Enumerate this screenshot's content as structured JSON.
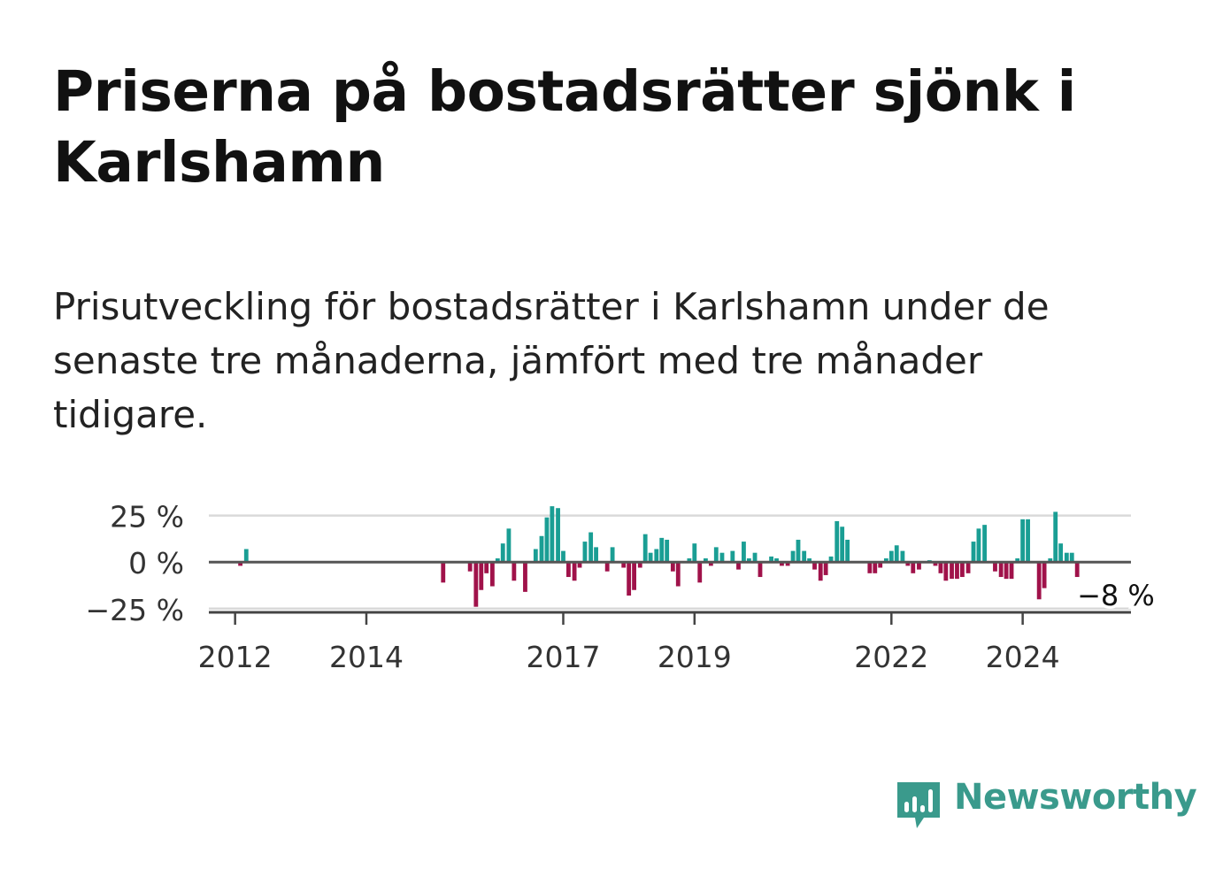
{
  "title": "Priserna på bostadsrätter sjönk i Karlshamn",
  "subtitle": "Prisutveckling för bostadsrätter i Karlshamn under de senaste tre månaderna, jämfört med tre månader tidigare.",
  "brand": "Newsworthy",
  "colors": {
    "positive": "#1a9e94",
    "negative": "#a0124a",
    "grid": "#d9d9d9",
    "zero": "#555555",
    "brand": "#3a9a8c"
  },
  "chart_data": {
    "type": "bar",
    "ylim": [
      -27,
      31
    ],
    "yticks": [
      25,
      0,
      -25
    ],
    "ytick_labels": [
      "25 %",
      "0 %",
      "−25 %"
    ],
    "xticks": [
      2012,
      2014,
      2017,
      2019,
      2022,
      2024
    ],
    "xtick_labels": [
      "2012",
      "2014",
      "2017",
      "2019",
      "2022",
      "2024"
    ],
    "xlim": [
      2011.6,
      2025.65
    ],
    "annotation": {
      "text": "−8 %",
      "x": 2025.42,
      "y": -8
    },
    "series": [
      {
        "values": [
          {
            "x": 2012.08,
            "y": -2
          },
          {
            "x": 2012.17,
            "y": 7
          },
          {
            "x": 2015.17,
            "y": -11
          },
          {
            "x": 2015.58,
            "y": -5
          },
          {
            "x": 2015.67,
            "y": -24
          },
          {
            "x": 2015.75,
            "y": -15
          },
          {
            "x": 2015.83,
            "y": -6
          },
          {
            "x": 2015.92,
            "y": -13
          },
          {
            "x": 2016.0,
            "y": 2
          },
          {
            "x": 2016.08,
            "y": 10
          },
          {
            "x": 2016.17,
            "y": 18
          },
          {
            "x": 2016.25,
            "y": -10
          },
          {
            "x": 2016.42,
            "y": -16
          },
          {
            "x": 2016.58,
            "y": 7
          },
          {
            "x": 2016.67,
            "y": 14
          },
          {
            "x": 2016.75,
            "y": 24
          },
          {
            "x": 2016.83,
            "y": 30
          },
          {
            "x": 2016.92,
            "y": 29
          },
          {
            "x": 2017.0,
            "y": 6
          },
          {
            "x": 2017.08,
            "y": -8
          },
          {
            "x": 2017.17,
            "y": -10
          },
          {
            "x": 2017.25,
            "y": -3
          },
          {
            "x": 2017.33,
            "y": 11
          },
          {
            "x": 2017.42,
            "y": 16
          },
          {
            "x": 2017.5,
            "y": 8
          },
          {
            "x": 2017.67,
            "y": -5
          },
          {
            "x": 2017.75,
            "y": 8
          },
          {
            "x": 2017.92,
            "y": -3
          },
          {
            "x": 2018.0,
            "y": -18
          },
          {
            "x": 2018.08,
            "y": -15
          },
          {
            "x": 2018.17,
            "y": -3
          },
          {
            "x": 2018.25,
            "y": 15
          },
          {
            "x": 2018.33,
            "y": 5
          },
          {
            "x": 2018.42,
            "y": 7
          },
          {
            "x": 2018.5,
            "y": 13
          },
          {
            "x": 2018.58,
            "y": 12
          },
          {
            "x": 2018.67,
            "y": -5
          },
          {
            "x": 2018.75,
            "y": -13
          },
          {
            "x": 2018.92,
            "y": 2
          },
          {
            "x": 2019.0,
            "y": 10
          },
          {
            "x": 2019.08,
            "y": -11
          },
          {
            "x": 2019.17,
            "y": 2
          },
          {
            "x": 2019.25,
            "y": -2
          },
          {
            "x": 2019.33,
            "y": 8
          },
          {
            "x": 2019.42,
            "y": 5
          },
          {
            "x": 2019.58,
            "y": 6
          },
          {
            "x": 2019.67,
            "y": -4
          },
          {
            "x": 2019.75,
            "y": 11
          },
          {
            "x": 2019.83,
            "y": 2
          },
          {
            "x": 2019.92,
            "y": 5
          },
          {
            "x": 2020.0,
            "y": -8
          },
          {
            "x": 2020.17,
            "y": 3
          },
          {
            "x": 2020.25,
            "y": 2
          },
          {
            "x": 2020.33,
            "y": -2
          },
          {
            "x": 2020.42,
            "y": -2
          },
          {
            "x": 2020.5,
            "y": 6
          },
          {
            "x": 2020.58,
            "y": 12
          },
          {
            "x": 2020.67,
            "y": 6
          },
          {
            "x": 2020.75,
            "y": 2
          },
          {
            "x": 2020.83,
            "y": -4
          },
          {
            "x": 2020.92,
            "y": -10
          },
          {
            "x": 2021.0,
            "y": -7
          },
          {
            "x": 2021.08,
            "y": 3
          },
          {
            "x": 2021.17,
            "y": 22
          },
          {
            "x": 2021.25,
            "y": 19
          },
          {
            "x": 2021.33,
            "y": 12
          },
          {
            "x": 2021.67,
            "y": -6
          },
          {
            "x": 2021.75,
            "y": -6
          },
          {
            "x": 2021.83,
            "y": -3
          },
          {
            "x": 2021.92,
            "y": 2
          },
          {
            "x": 2022.0,
            "y": 6
          },
          {
            "x": 2022.08,
            "y": 9
          },
          {
            "x": 2022.17,
            "y": 6
          },
          {
            "x": 2022.25,
            "y": -2
          },
          {
            "x": 2022.33,
            "y": -6
          },
          {
            "x": 2022.42,
            "y": -4
          },
          {
            "x": 2022.58,
            "y": 1
          },
          {
            "x": 2022.67,
            "y": -2
          },
          {
            "x": 2022.75,
            "y": -6
          },
          {
            "x": 2022.83,
            "y": -10
          },
          {
            "x": 2022.92,
            "y": -9
          },
          {
            "x": 2023.0,
            "y": -9
          },
          {
            "x": 2023.08,
            "y": -8
          },
          {
            "x": 2023.17,
            "y": -6
          },
          {
            "x": 2023.25,
            "y": 11
          },
          {
            "x": 2023.33,
            "y": 18
          },
          {
            "x": 2023.42,
            "y": 20
          },
          {
            "x": 2023.58,
            "y": -5
          },
          {
            "x": 2023.67,
            "y": -8
          },
          {
            "x": 2023.75,
            "y": -9
          },
          {
            "x": 2023.83,
            "y": -9
          },
          {
            "x": 2023.92,
            "y": 2
          },
          {
            "x": 2024.0,
            "y": 23
          },
          {
            "x": 2024.08,
            "y": 23
          },
          {
            "x": 2024.17,
            "y": 0.5
          },
          {
            "x": 2024.25,
            "y": -20
          },
          {
            "x": 2024.33,
            "y": -14
          },
          {
            "x": 2024.42,
            "y": 2
          },
          {
            "x": 2024.5,
            "y": 27
          },
          {
            "x": 2024.58,
            "y": 10
          },
          {
            "x": 2024.67,
            "y": 5
          },
          {
            "x": 2024.75,
            "y": 5
          },
          {
            "x": 2024.83,
            "y": -8
          }
        ]
      }
    ]
  }
}
